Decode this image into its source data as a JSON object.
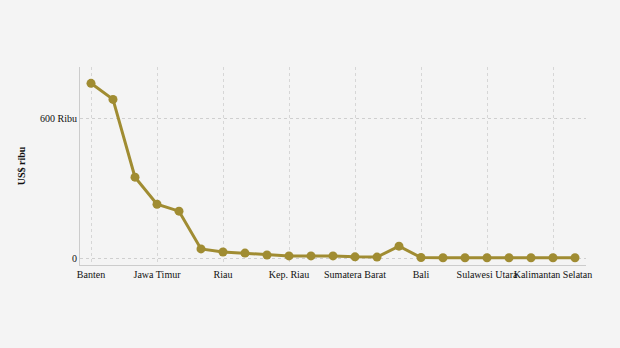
{
  "chart_data": {
    "type": "line",
    "y_label": "US$ ribu",
    "categories": [
      "Banten",
      null,
      null,
      "Jawa Timur",
      null,
      null,
      "Riau",
      null,
      null,
      "Kep. Riau",
      null,
      null,
      "Sumatera Barat",
      null,
      null,
      "Bali",
      null,
      null,
      "Sulawesi Utara",
      null,
      null,
      "Kalimantan Selatan",
      null
    ],
    "values": [
      750,
      681,
      347,
      231,
      201,
      39,
      26,
      21,
      13,
      9,
      9,
      9,
      5,
      4,
      51,
      2,
      1,
      1,
      1,
      1,
      1,
      1,
      1
    ],
    "color": "#a08c32",
    "marker": "circle",
    "line_style": "solid",
    "ylim": [
      -30,
      820
    ],
    "yticks": [
      0,
      {
        "value": 600,
        "label": "600 Ribu"
      }
    ],
    "grid": true
  }
}
